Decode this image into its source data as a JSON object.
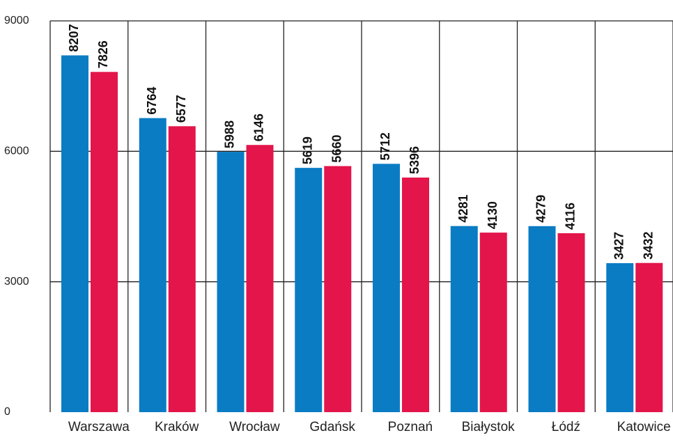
{
  "chart_data": {
    "type": "bar",
    "categories": [
      "Warszawa",
      "Kraków",
      "Wrocław",
      "Gdańsk",
      "Poznań",
      "Białystok",
      "Łódź",
      "Katowice"
    ],
    "series": [
      {
        "color": "#0a7cc4",
        "values": [
          8207,
          6764,
          5988,
          5619,
          5712,
          4281,
          4279,
          3427
        ]
      },
      {
        "color": "#e3154a",
        "values": [
          7826,
          6577,
          6146,
          5660,
          5396,
          4130,
          4116,
          3432
        ]
      }
    ],
    "ylim": [
      0,
      9000
    ],
    "yticks": [
      0,
      3000,
      6000,
      9000
    ],
    "grid": true
  }
}
